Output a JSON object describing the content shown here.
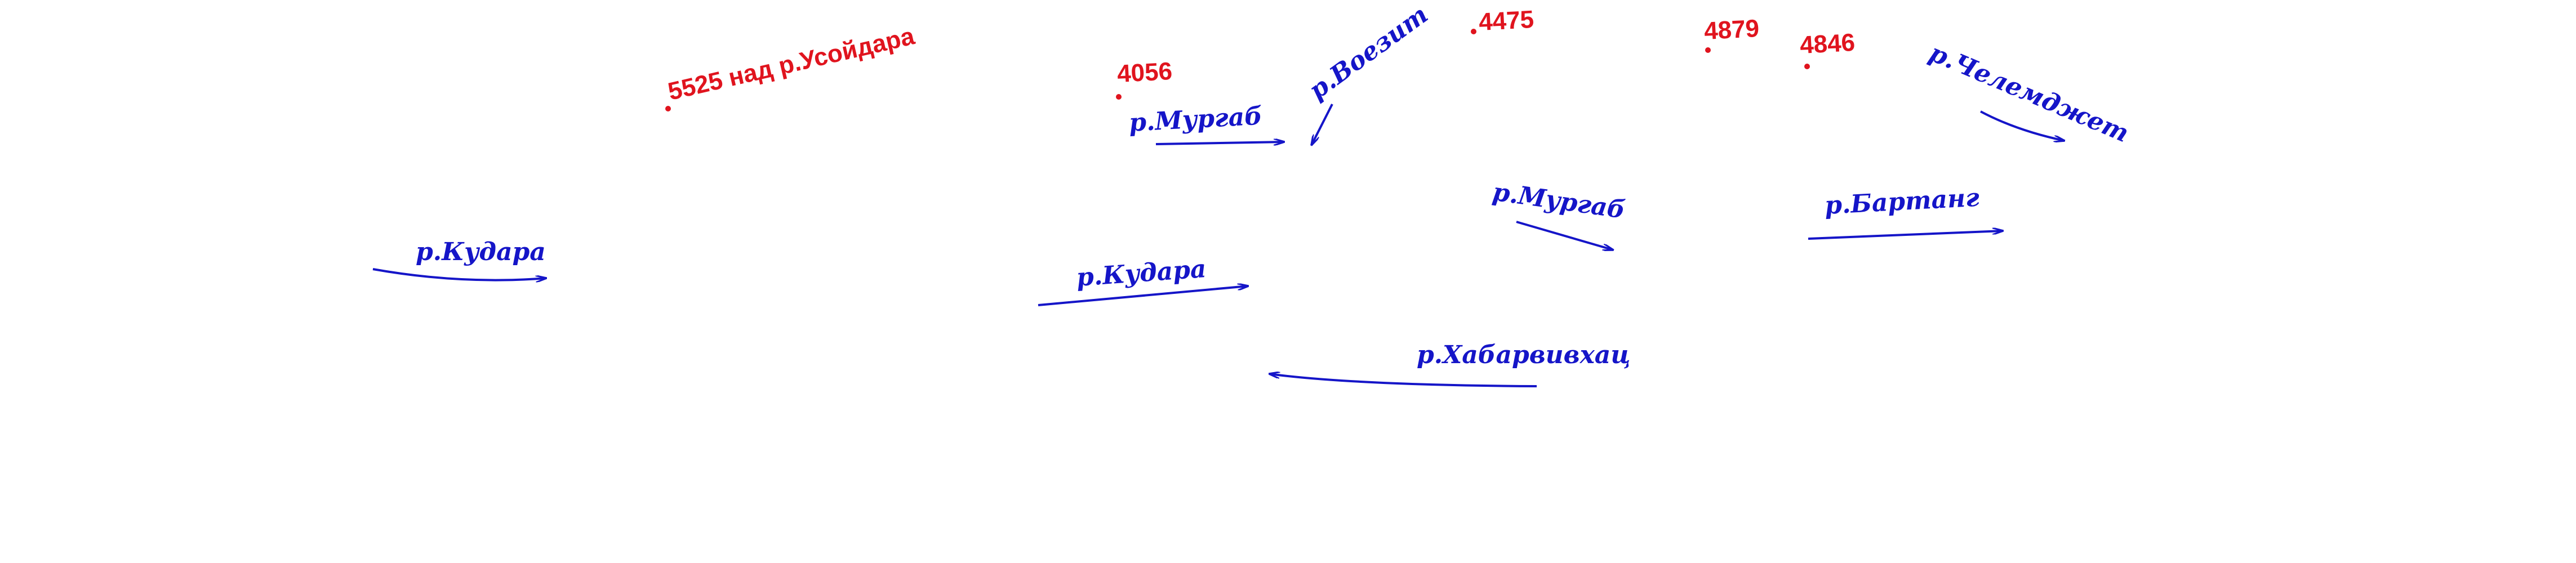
{
  "colors": {
    "river": "#1515c8",
    "elevation": "#e0141e",
    "background": "#ffffff"
  },
  "elevations": [
    {
      "id": "usoidara",
      "text": "5525 над р.Усойдара"
    },
    {
      "id": "e4056",
      "text": "4056"
    },
    {
      "id": "e4475",
      "text": "4475"
    },
    {
      "id": "e4879",
      "text": "4879"
    },
    {
      "id": "e4846",
      "text": "4846"
    }
  ],
  "rivers": [
    {
      "id": "kudara-west",
      "text": "р.Кудара"
    },
    {
      "id": "murgab-north",
      "text": "р.Мургаб"
    },
    {
      "id": "voezit",
      "text": "р.Воезит"
    },
    {
      "id": "chelemdzhet",
      "text": "р.Челемджет"
    },
    {
      "id": "murgab-east",
      "text": "р.Мургаб"
    },
    {
      "id": "bartang",
      "text": "р.Бартанг"
    },
    {
      "id": "kudara-central",
      "text": "р.Кудара"
    },
    {
      "id": "khabarvivkhats",
      "text": "р.Хабарвивхац"
    }
  ]
}
